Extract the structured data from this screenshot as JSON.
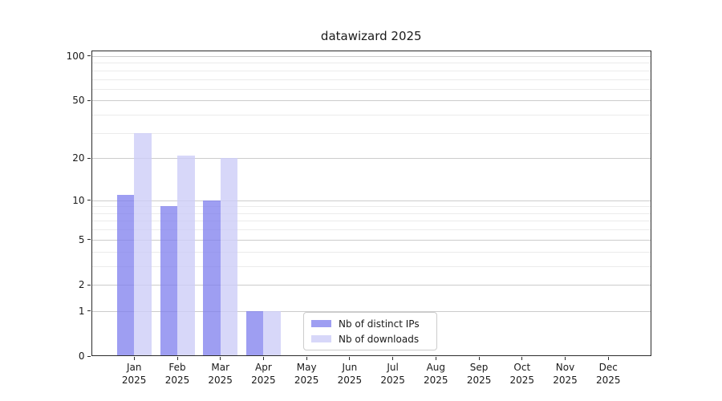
{
  "title": "datawizard 2025",
  "chart_data": {
    "type": "bar",
    "title": "datawizard 2025",
    "categories": [
      "Jan",
      "Feb",
      "Mar",
      "Apr",
      "May",
      "Jun",
      "Jul",
      "Aug",
      "Sep",
      "Oct",
      "Nov",
      "Dec"
    ],
    "category_year": "2025",
    "series": [
      {
        "name": "Nb of distinct IPs",
        "color": "#7d7dee",
        "opacity": 0.75,
        "values": [
          11,
          9,
          10,
          1,
          0,
          0,
          0,
          0,
          0,
          0,
          0,
          0
        ]
      },
      {
        "name": "Nb of downloads",
        "color": "#cdcdf7",
        "opacity": 0.8,
        "values": [
          30,
          21,
          20,
          1,
          0,
          0,
          0,
          0,
          0,
          0,
          0,
          0
        ]
      }
    ],
    "yscale": "log1p",
    "y_ticks": [
      0,
      1,
      2,
      5,
      10,
      20,
      50,
      100
    ],
    "y_minor_ticks": [
      3,
      4,
      6,
      7,
      8,
      9,
      30,
      40,
      60,
      70,
      80,
      90
    ],
    "ylim": [
      0,
      109
    ],
    "grid": "horizontal-major-and-minor",
    "legend_position": "inside-bottom-center",
    "grid_major_color": "#cccccc",
    "grid_minor_color": "#ebebeb",
    "spine_color": "#2b2b2b"
  }
}
